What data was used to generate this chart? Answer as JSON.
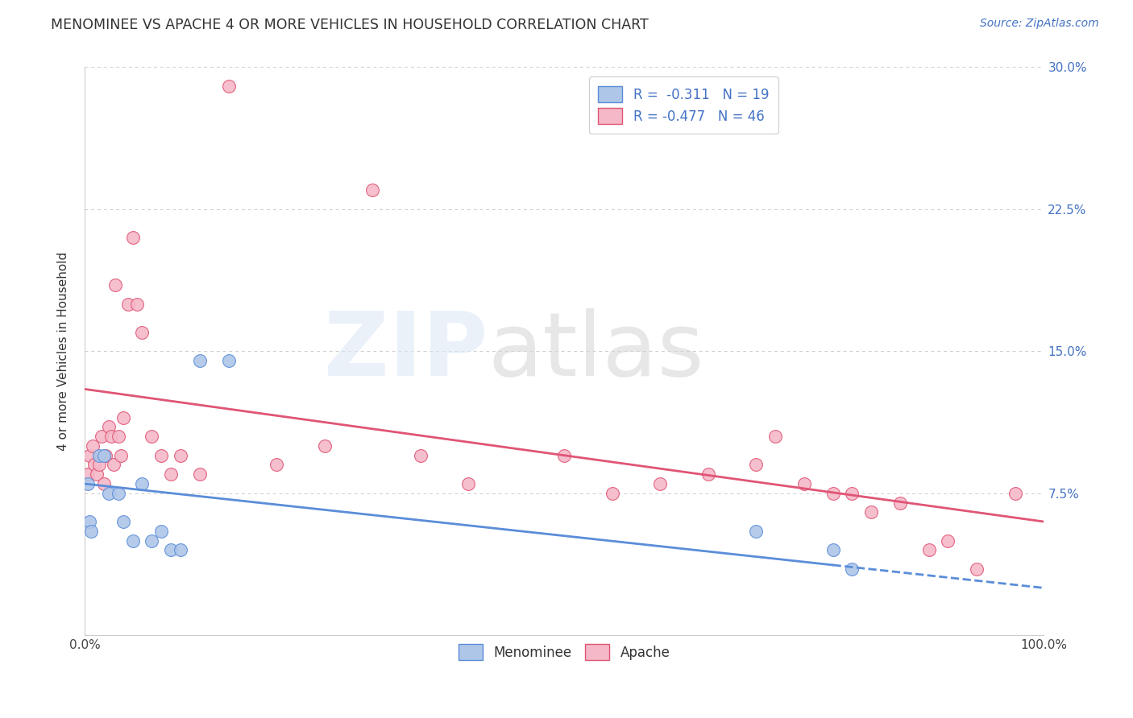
{
  "title": "MENOMINEE VS APACHE 4 OR MORE VEHICLES IN HOUSEHOLD CORRELATION CHART",
  "source": "Source: ZipAtlas.com",
  "ylabel": "4 or more Vehicles in Household",
  "xlim": [
    0,
    100
  ],
  "ylim": [
    0,
    30
  ],
  "grid_color": "#cccccc",
  "background_color": "#ffffff",
  "menominee_color": "#aec6e8",
  "apache_color": "#f5b8c8",
  "menominee_line_color": "#5b8dd9",
  "apache_line_color": "#e05575",
  "menominee_R": "-0.311",
  "menominee_N": "19",
  "apache_R": "-0.477",
  "apache_N": "46",
  "menominee_x": [
    0.3,
    0.5,
    0.7,
    1.5,
    2.0,
    2.5,
    3.5,
    4.0,
    5.0,
    6.0,
    7.0,
    8.0,
    9.0,
    10.0,
    12.0,
    15.0,
    70.0,
    78.0,
    80.0
  ],
  "menominee_y": [
    8.0,
    6.0,
    5.5,
    9.5,
    9.5,
    7.5,
    7.5,
    6.0,
    5.0,
    8.0,
    5.0,
    5.5,
    4.5,
    4.5,
    14.5,
    14.5,
    5.5,
    4.5,
    3.5
  ],
  "apache_x": [
    0.3,
    0.5,
    0.8,
    1.0,
    1.3,
    1.5,
    1.8,
    2.0,
    2.2,
    2.5,
    2.8,
    3.0,
    3.2,
    3.5,
    3.8,
    4.0,
    4.5,
    5.0,
    5.5,
    6.0,
    7.0,
    8.0,
    9.0,
    10.0,
    12.0,
    15.0,
    20.0,
    25.0,
    30.0,
    35.0,
    40.0,
    50.0,
    55.0,
    60.0,
    65.0,
    70.0,
    72.0,
    75.0,
    78.0,
    80.0,
    82.0,
    85.0,
    88.0,
    90.0,
    93.0,
    97.0
  ],
  "apache_y": [
    8.5,
    9.5,
    10.0,
    9.0,
    8.5,
    9.0,
    10.5,
    8.0,
    9.5,
    11.0,
    10.5,
    9.0,
    18.5,
    10.5,
    9.5,
    11.5,
    17.5,
    21.0,
    17.5,
    16.0,
    10.5,
    9.5,
    8.5,
    9.5,
    8.5,
    29.0,
    9.0,
    10.0,
    23.5,
    9.5,
    8.0,
    9.5,
    7.5,
    8.0,
    8.5,
    9.0,
    10.5,
    8.0,
    7.5,
    7.5,
    6.5,
    7.0,
    4.5,
    5.0,
    3.5,
    7.5
  ],
  "apache_line_x0": 0,
  "apache_line_y0": 13.0,
  "apache_line_x1": 100,
  "apache_line_y1": 6.0,
  "menominee_line_x0": 0,
  "menominee_line_y0": 8.0,
  "menominee_line_x1": 100,
  "menominee_line_y1": 2.5,
  "menominee_solid_end": 78
}
